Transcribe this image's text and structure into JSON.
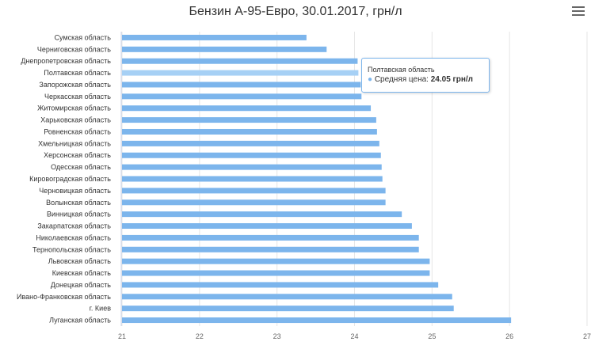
{
  "title": "Бензин А-95-Евро, 30.01.2017, грн/л",
  "menu_icon": "hamburger-menu-icon",
  "colors": {
    "bar": "#7cb5ec",
    "bar_hover": "#a6d0f5",
    "grid": "#e6e6e6",
    "text": "#333333"
  },
  "tooltip": {
    "category": "Полтавская область",
    "series_label": "Средняя цена:",
    "value_text": "24.05 грн/л"
  },
  "chart_data": {
    "type": "bar",
    "orientation": "horizontal",
    "title": "Бензин А-95-Евро, 30.01.2017, грн/л",
    "xlim": [
      21,
      27
    ],
    "ticks": [
      "21",
      "22",
      "23",
      "24",
      "25",
      "26",
      "27"
    ],
    "grid": true,
    "highlighted_category": "Полтавская область",
    "categories": [
      "Сумская область",
      "Черниговская область",
      "Днепропетровская область",
      "Полтавская область",
      "Запорожская область",
      "Черкасская область",
      "Житомирская область",
      "Харьковская область",
      "Ровненская область",
      "Хмельницкая область",
      "Херсонская область",
      "Одесская область",
      "Кировоградская область",
      "Черновицкая область",
      "Волынская область",
      "Винницкая область",
      "Закарпатская область",
      "Николаевская область",
      "Тернопольская область",
      "Львовская область",
      "Киевская область",
      "Донецкая область",
      "Ивано-Франковская область",
      "г. Киев",
      "Луганская область"
    ],
    "series": [
      {
        "values": [
          23.38,
          23.64,
          24.04,
          24.05,
          24.08,
          24.09,
          24.21,
          24.28,
          24.29,
          24.32,
          24.34,
          24.35,
          24.36,
          24.4,
          24.4,
          24.61,
          24.74,
          24.83,
          24.83,
          24.97,
          24.97,
          25.08,
          25.26,
          25.28,
          26.02
        ]
      }
    ]
  }
}
